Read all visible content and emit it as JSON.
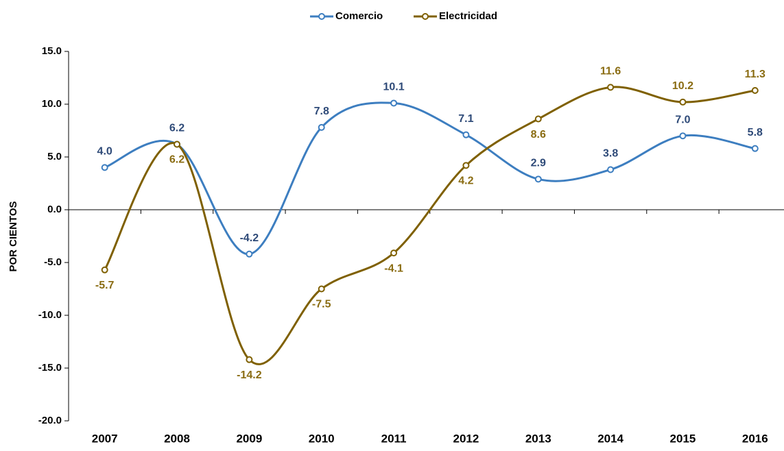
{
  "chart_data": {
    "type": "line",
    "y_label": "POR CIENTOS",
    "categories": [
      "2007",
      "2008",
      "2009",
      "2010",
      "2011",
      "2012",
      "2013",
      "2014",
      "2015",
      "2016"
    ],
    "series": [
      {
        "name": "Comercio",
        "color": "#3d7ec0",
        "label_color": "#2e4a78",
        "values": [
          4.0,
          6.2,
          -4.2,
          7.8,
          10.1,
          7.1,
          2.9,
          3.8,
          7.0,
          5.8
        ],
        "value_labels": [
          "4.0",
          "6.2",
          "-4.2",
          "7.8",
          "10.1",
          "7.1",
          "2.9",
          "3.8",
          "7.0",
          "5.8"
        ]
      },
      {
        "name": "Electricidad",
        "color": "#7f6000",
        "label_color": "#8a6c12",
        "values": [
          -5.7,
          6.2,
          -14.2,
          -7.5,
          -4.1,
          4.2,
          8.6,
          11.6,
          10.2,
          11.3
        ],
        "value_labels": [
          "-5.7",
          "6.2",
          "-14.2",
          "-7.5",
          "-4.1",
          "4.2",
          "8.6",
          "11.6",
          "10.2",
          "11.3"
        ]
      }
    ],
    "ylim": [
      -20,
      15
    ],
    "yticks": [
      {
        "value": -20,
        "label": "-20.0"
      },
      {
        "value": -15,
        "label": "-15.0"
      },
      {
        "value": -10,
        "label": "-10.0"
      },
      {
        "value": -5,
        "label": "-5.0"
      },
      {
        "value": 0,
        "label": "0.0"
      },
      {
        "value": 5,
        "label": "5.0"
      },
      {
        "value": 10,
        "label": "10.0"
      },
      {
        "value": 15,
        "label": "15.0"
      }
    ],
    "legend": "top",
    "smooth": true,
    "grid": false
  }
}
